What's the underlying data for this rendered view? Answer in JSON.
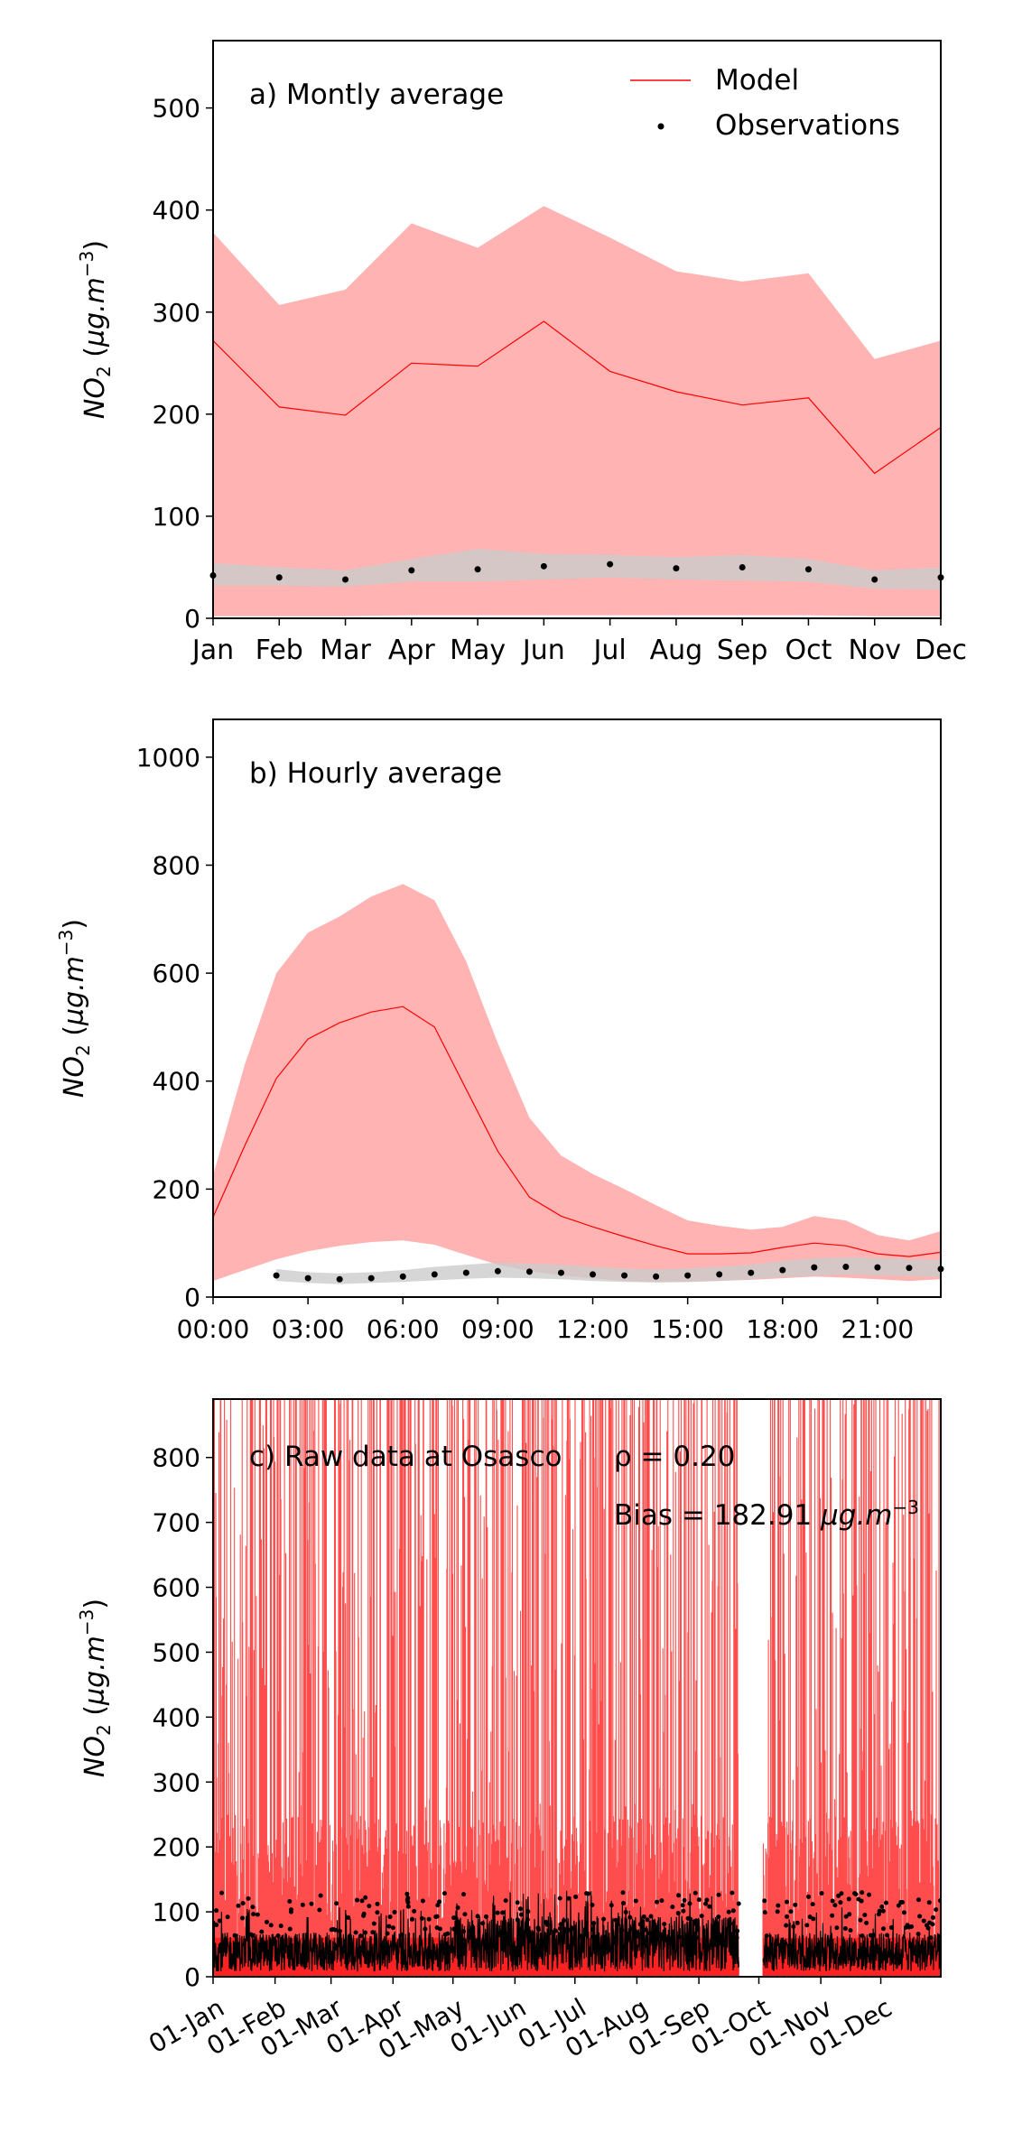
{
  "chart_data": [
    {
      "type": "line",
      "title": "a) Montly average",
      "ylabel": "NO2 (µg.m⁻³)",
      "ylim": [
        0,
        566
      ],
      "xlim": [
        0,
        11
      ],
      "yticks": [
        0,
        100,
        200,
        300,
        400,
        500
      ],
      "categories": [
        "Jan",
        "Feb",
        "Mar",
        "Apr",
        "May",
        "Jun",
        "Jul",
        "Aug",
        "Sep",
        "Oct",
        "Nov",
        "Dec"
      ],
      "legend": {
        "placement": "top-right",
        "entries": [
          "Model",
          "Observations"
        ]
      },
      "grid": false,
      "series": [
        {
          "name": "Model",
          "kind": "line",
          "color": "#ff0000",
          "values": [
            272,
            207,
            199,
            250,
            247,
            291,
            242,
            222,
            209,
            216,
            142,
            187
          ]
        },
        {
          "kind": "band",
          "color": "#ff9999",
          "lower": [
            2,
            2,
            2,
            3,
            3,
            3,
            3,
            3,
            3,
            3,
            2,
            2
          ],
          "upper": [
            378,
            307,
            322,
            387,
            363,
            404,
            373,
            340,
            330,
            338,
            254,
            272
          ]
        },
        {
          "name": "Observations",
          "kind": "points",
          "color": "#000000",
          "values": [
            42,
            40,
            38,
            47,
            48,
            51,
            53,
            49,
            50,
            48,
            38,
            40
          ]
        },
        {
          "kind": "band",
          "color": "#cccccc",
          "lower": [
            32,
            32,
            31,
            36,
            36,
            38,
            40,
            38,
            37,
            36,
            29,
            28
          ],
          "upper": [
            54,
            50,
            47,
            58,
            68,
            63,
            62,
            60,
            62,
            58,
            47,
            50
          ]
        }
      ]
    },
    {
      "type": "line",
      "title": "b) Hourly average",
      "ylabel": "NO2 (µg.m⁻³)",
      "ylim": [
        0,
        1070
      ],
      "xlim": [
        0,
        23
      ],
      "yticks": [
        0,
        200,
        400,
        600,
        800,
        1000
      ],
      "xtick_hours": [
        0,
        3,
        6,
        9,
        12,
        15,
        18,
        21
      ],
      "xtick_labels": [
        "00:00",
        "03:00",
        "06:00",
        "09:00",
        "12:00",
        "15:00",
        "18:00",
        "21:00"
      ],
      "grid": false,
      "x": [
        0,
        1,
        2,
        3,
        4,
        5,
        6,
        7,
        8,
        9,
        10,
        11,
        12,
        13,
        14,
        15,
        16,
        17,
        18,
        19,
        20,
        21,
        22,
        23
      ],
      "series": [
        {
          "name": "Model",
          "kind": "line",
          "color": "#ff0000",
          "values": [
            148,
            280,
            405,
            478,
            508,
            528,
            538,
            500,
            385,
            270,
            185,
            150,
            130,
            112,
            95,
            80,
            80,
            82,
            92,
            100,
            95,
            80,
            75,
            83
          ]
        },
        {
          "kind": "band",
          "color": "#ff9999",
          "lower": [
            30,
            50,
            70,
            85,
            95,
            102,
            105,
            97,
            78,
            60,
            48,
            40,
            35,
            30,
            28,
            28,
            30,
            32,
            35,
            38,
            36,
            33,
            30,
            33
          ],
          "upper": [
            225,
            430,
            600,
            675,
            705,
            742,
            765,
            735,
            622,
            470,
            332,
            262,
            228,
            200,
            170,
            142,
            132,
            125,
            130,
            150,
            142,
            115,
            105,
            122
          ]
        },
        {
          "name": "Observations",
          "kind": "points",
          "color": "#000000",
          "x": [
            2,
            3,
            4,
            5,
            6,
            7,
            8,
            9,
            10,
            11,
            12,
            13,
            14,
            15,
            16,
            17,
            18,
            19,
            20,
            21,
            22,
            23
          ],
          "values": [
            40,
            35,
            33,
            35,
            38,
            42,
            45,
            48,
            47,
            45,
            42,
            40,
            38,
            40,
            42,
            45,
            50,
            55,
            56,
            55,
            54,
            52
          ]
        },
        {
          "kind": "band",
          "color": "#cccccc",
          "x": [
            2,
            3,
            4,
            5,
            6,
            7,
            8,
            9,
            10,
            11,
            12,
            13,
            14,
            15,
            16,
            17,
            18,
            19,
            20,
            21,
            22,
            23
          ],
          "lower": [
            30,
            26,
            24,
            26,
            28,
            31,
            34,
            36,
            35,
            33,
            30,
            28,
            27,
            28,
            30,
            33,
            37,
            40,
            42,
            40,
            39,
            37
          ],
          "upper": [
            52,
            46,
            44,
            46,
            50,
            56,
            60,
            64,
            62,
            60,
            56,
            53,
            51,
            53,
            56,
            60,
            67,
            72,
            74,
            72,
            70,
            68
          ]
        }
      ]
    },
    {
      "type": "line",
      "title": "c) Raw data at Osasco",
      "annotations": [
        "ρ = 0.20",
        "Bias = 182.91"
      ],
      "bias_unit": "µg.m⁻³",
      "ylabel": "NO2 (µg.m⁻³)",
      "ylim": [
        0,
        890
      ],
      "xlim": [
        0,
        364
      ],
      "yticks": [
        0,
        100,
        200,
        300,
        400,
        500,
        600,
        700,
        800
      ],
      "xtick_day": [
        0,
        31,
        59,
        90,
        120,
        151,
        181,
        212,
        243,
        273,
        304,
        334
      ],
      "xtick_labels": [
        "01-Jan",
        "01-Feb",
        "01-Mar",
        "01-Apr",
        "01-May",
        "01-Jun",
        "01-Jul",
        "01-Aug",
        "01-Sep",
        "01-Oct",
        "01-Nov",
        "01-Dec"
      ],
      "gap": [
        263,
        275
      ],
      "grid": false,
      "series": [
        {
          "name": "Model",
          "kind": "line",
          "color": "#ff0000"
        },
        {
          "name": "Observations",
          "kind": "points",
          "color": "#000000"
        }
      ]
    }
  ]
}
